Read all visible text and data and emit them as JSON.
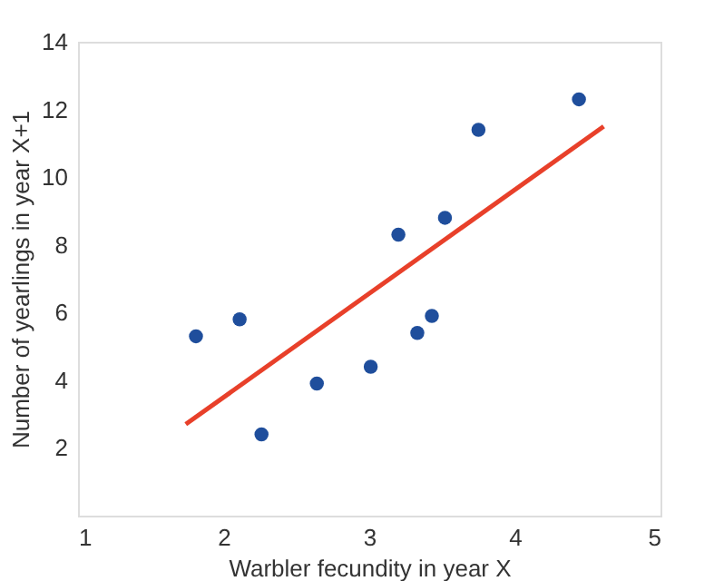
{
  "chart_data": {
    "type": "scatter",
    "xlabel": "Warbler fecundity in year X",
    "ylabel": "Number of yearlings in year X+1",
    "xlim": [
      1,
      5
    ],
    "xticks": [
      1,
      2,
      3,
      4,
      5
    ],
    "ylim": [
      0,
      14
    ],
    "yticks": [
      2,
      4,
      6,
      8,
      10,
      12,
      14
    ],
    "grid": false,
    "series": [
      {
        "color": "#1f4e9c",
        "marker": "circle",
        "x": [
          1.81,
          2.11,
          2.26,
          2.64,
          3.01,
          3.2,
          3.33,
          3.43,
          3.52,
          3.75,
          4.44
        ],
        "values": [
          5.3,
          5.8,
          2.4,
          3.9,
          4.4,
          8.3,
          5.4,
          5.9,
          8.8,
          11.4,
          12.3
        ]
      },
      {
        "type": "line",
        "color": "#e8402a",
        "line_style": "solid",
        "x": [
          1.74,
          4.61
        ],
        "values": [
          2.7,
          11.5
        ]
      }
    ]
  }
}
